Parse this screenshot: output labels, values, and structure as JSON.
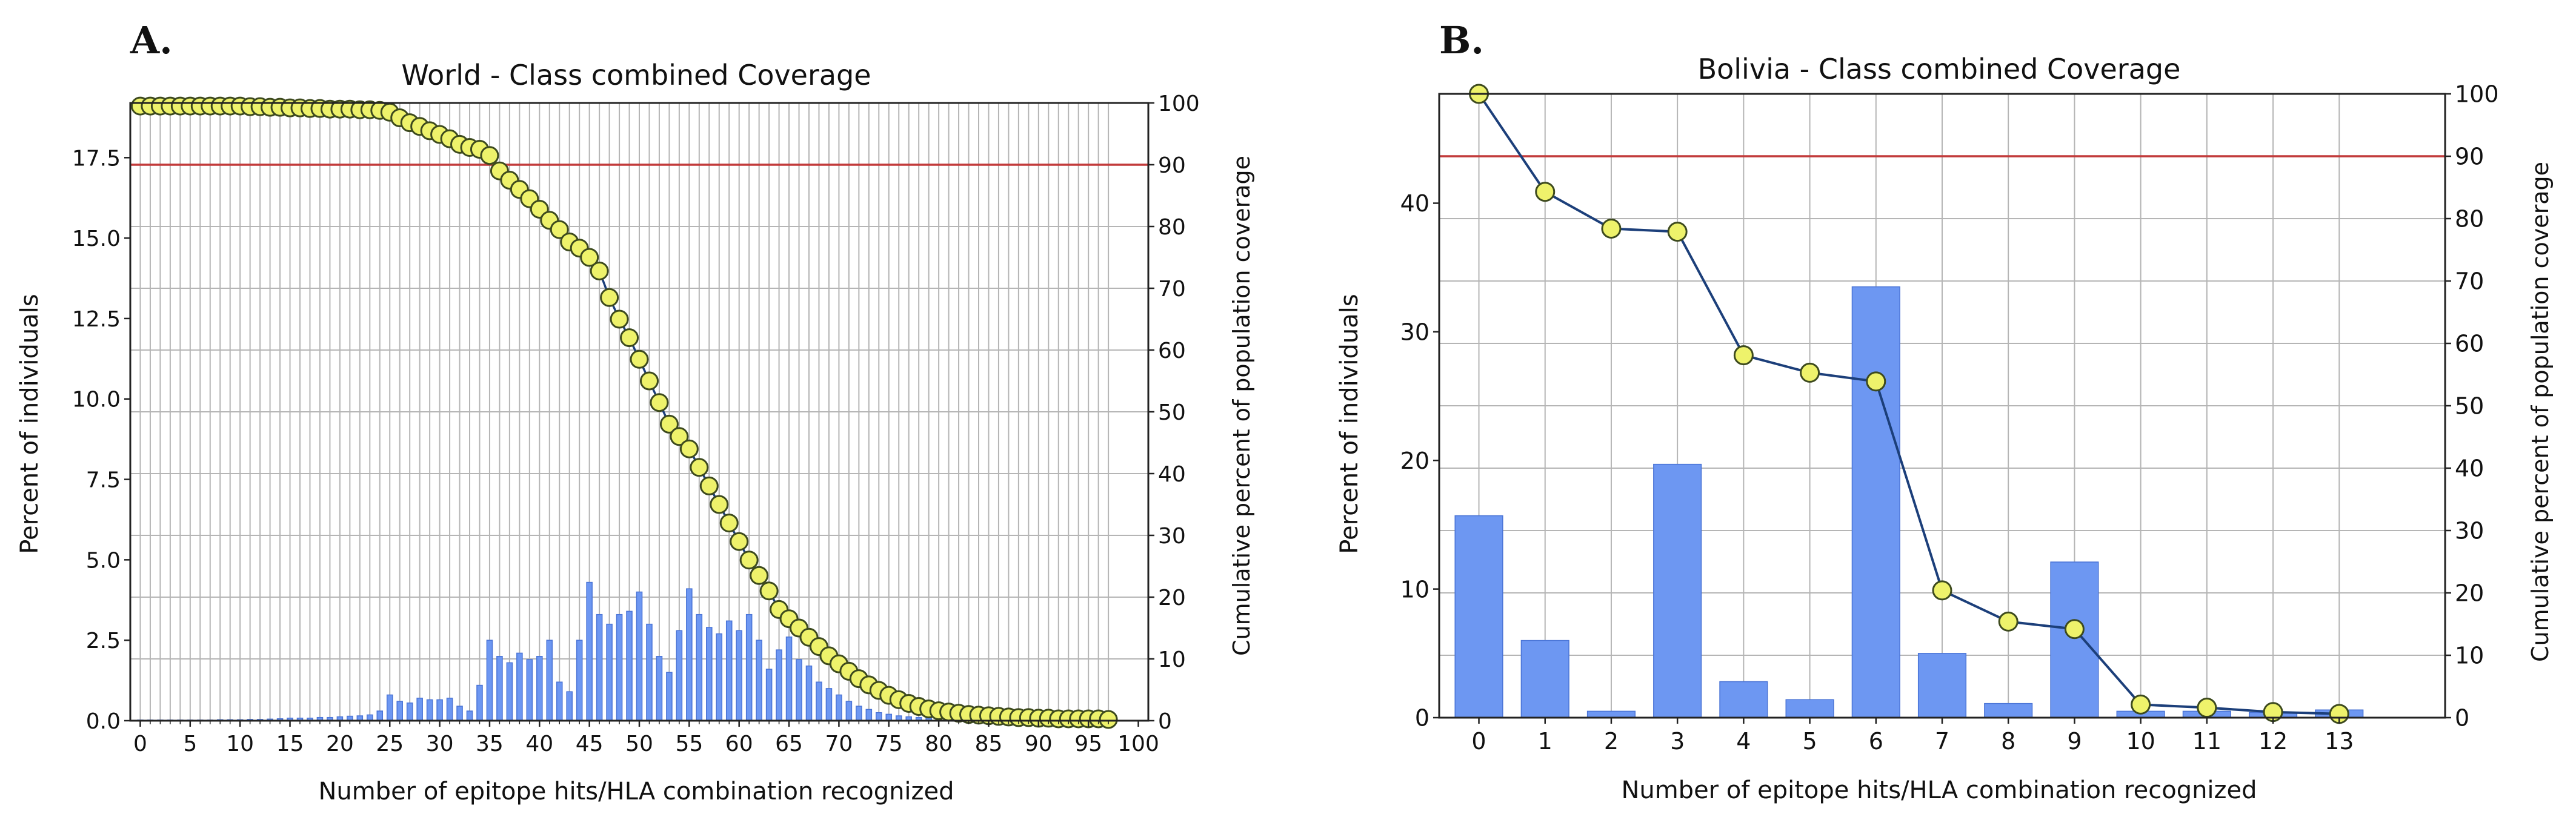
{
  "colors": {
    "bar_fill": "#6d97f2",
    "bar_edge": "#4a74d6",
    "line": "#1c3f7a",
    "marker_fill": "#eef26b",
    "marker_edge": "#3d4a1e",
    "threshold": "#c23b3b",
    "grid": "#b5b5b5",
    "axis": "#222222"
  },
  "chart_data": [
    {
      "type": "bar",
      "panel_label": "A.",
      "title": "World - Class combined Coverage",
      "xlabel": "Number of epitope hits/HLA combination recognized",
      "ylabel": "Percent of individuals",
      "y2label": "Cumulative percent of population coverage",
      "xlim": [
        -1,
        101
      ],
      "ylim": [
        0,
        19.2
      ],
      "y2lim": [
        0,
        100
      ],
      "threshold_y2": 90,
      "grid": true,
      "x_ticks": [
        0,
        5,
        10,
        15,
        20,
        25,
        30,
        35,
        40,
        45,
        50,
        55,
        60,
        65,
        70,
        75,
        80,
        85,
        90,
        95,
        100
      ],
      "x_tick_labels": [
        "0",
        "5",
        "10",
        "15",
        "20",
        "25",
        "30",
        "35",
        "40",
        "45",
        "50",
        "55",
        "60",
        "65",
        "70",
        "75",
        "80",
        "85",
        "90",
        "95",
        "100"
      ],
      "y_ticks": [
        0,
        2.5,
        5,
        7.5,
        10,
        12.5,
        15,
        17.5
      ],
      "y_tick_labels": [
        "0.0",
        "2.5",
        "5.0",
        "7.5",
        "10.0",
        "12.5",
        "15.0",
        "17.5"
      ],
      "y2_ticks": [
        0,
        10,
        20,
        30,
        40,
        50,
        60,
        70,
        80,
        90,
        100
      ],
      "y2_tick_labels": [
        "0",
        "10",
        "20",
        "30",
        "40",
        "50",
        "60",
        "70",
        "80",
        "90",
        "100"
      ],
      "categories": [
        0,
        1,
        2,
        3,
        4,
        5,
        6,
        7,
        8,
        9,
        10,
        11,
        12,
        13,
        14,
        15,
        16,
        17,
        18,
        19,
        20,
        21,
        22,
        23,
        24,
        25,
        26,
        27,
        28,
        29,
        30,
        31,
        32,
        33,
        34,
        35,
        36,
        37,
        38,
        39,
        40,
        41,
        42,
        43,
        44,
        45,
        46,
        47,
        48,
        49,
        50,
        51,
        52,
        53,
        54,
        55,
        56,
        57,
        58,
        59,
        60,
        61,
        62,
        63,
        64,
        65,
        66,
        67,
        68,
        69,
        70,
        71,
        72,
        73,
        74,
        75,
        76,
        77,
        78,
        79,
        80,
        81,
        82,
        83,
        84,
        85,
        86,
        87,
        88,
        89,
        90,
        91,
        92,
        93,
        94,
        95,
        96,
        97
      ],
      "series": [
        {
          "name": "Percent of individuals",
          "axis": "left",
          "values": [
            0.02,
            0.02,
            0.02,
            0.02,
            0.02,
            0.02,
            0.02,
            0.02,
            0.03,
            0.03,
            0.03,
            0.04,
            0.04,
            0.05,
            0.06,
            0.08,
            0.08,
            0.08,
            0.1,
            0.1,
            0.12,
            0.14,
            0.15,
            0.18,
            0.3,
            0.8,
            0.6,
            0.55,
            0.7,
            0.65,
            0.65,
            0.7,
            0.45,
            0.3,
            1.1,
            2.5,
            2.0,
            1.8,
            2.1,
            1.9,
            2.0,
            2.5,
            1.2,
            0.9,
            2.5,
            4.3,
            3.3,
            3.0,
            3.3,
            3.4,
            4.0,
            3.0,
            2.0,
            1.5,
            2.8,
            4.1,
            3.3,
            2.9,
            2.7,
            3.1,
            2.8,
            3.3,
            2.5,
            1.6,
            2.2,
            2.6,
            1.9,
            1.7,
            1.2,
            1.0,
            0.8,
            0.6,
            0.45,
            0.35,
            0.25,
            0.2,
            0.15,
            0.12,
            0.1,
            0.08,
            0.07,
            0.06,
            0.05,
            0.05,
            0.04,
            0.04,
            0.03,
            0.03,
            0.03,
            0.02,
            0.02,
            0.02,
            0.02,
            0.02,
            0.02,
            0.02,
            0.02,
            0.02
          ]
        },
        {
          "name": "Cumulative percent of population coverage",
          "axis": "right",
          "type": "line",
          "values": [
            99.5,
            99.5,
            99.5,
            99.5,
            99.5,
            99.5,
            99.5,
            99.5,
            99.5,
            99.5,
            99.5,
            99.4,
            99.4,
            99.3,
            99.3,
            99.2,
            99.2,
            99.1,
            99.1,
            99.0,
            99.0,
            99.0,
            98.9,
            98.9,
            98.8,
            98.5,
            97.6,
            96.8,
            96.2,
            95.5,
            94.9,
            94.2,
            93.3,
            92.8,
            92.5,
            91.5,
            89.0,
            87.5,
            86.0,
            84.5,
            82.8,
            81.0,
            79.5,
            77.5,
            76.5,
            75.0,
            72.8,
            68.5,
            65.0,
            62.0,
            58.5,
            55.0,
            51.5,
            48.0,
            46.0,
            44.0,
            41.0,
            38.0,
            35.0,
            32.0,
            29.0,
            26.0,
            23.5,
            21.0,
            18.0,
            16.5,
            15.0,
            13.5,
            12.0,
            10.5,
            9.2,
            8.0,
            6.8,
            5.8,
            4.9,
            4.1,
            3.4,
            2.8,
            2.3,
            1.9,
            1.6,
            1.4,
            1.2,
            1.0,
            0.9,
            0.8,
            0.7,
            0.6,
            0.5,
            0.5,
            0.4,
            0.4,
            0.3,
            0.3,
            0.3,
            0.3,
            0.3,
            0.2
          ]
        }
      ]
    },
    {
      "type": "bar",
      "panel_label": "B.",
      "title": "Bolivia - Class combined Coverage",
      "xlabel": "Number of epitope hits/HLA combination recognized",
      "ylabel": "Percent of individuals",
      "y2label": "Cumulative percent of population coverage",
      "xlim": [
        -0.6,
        14.6
      ],
      "ylim": [
        0,
        48.5
      ],
      "y2lim": [
        0,
        100
      ],
      "threshold_y2": 90,
      "grid": true,
      "x_ticks": [
        0,
        1,
        2,
        3,
        4,
        5,
        6,
        7,
        8,
        9,
        10,
        11,
        12,
        13
      ],
      "x_tick_labels": [
        "0",
        "1",
        "2",
        "3",
        "4",
        "5",
        "6",
        "7",
        "8",
        "9",
        "10",
        "11",
        "12",
        "13"
      ],
      "y_ticks": [
        0,
        10,
        20,
        30,
        40
      ],
      "y_tick_labels": [
        "0",
        "10",
        "20",
        "30",
        "40"
      ],
      "y2_ticks": [
        0,
        10,
        20,
        30,
        40,
        50,
        60,
        70,
        80,
        90,
        100
      ],
      "y2_tick_labels": [
        "0",
        "10",
        "20",
        "30",
        "40",
        "50",
        "60",
        "70",
        "80",
        "90",
        "100"
      ],
      "categories": [
        0,
        1,
        2,
        3,
        4,
        5,
        6,
        7,
        8,
        9,
        10,
        11,
        12,
        13
      ],
      "series": [
        {
          "name": "Percent of individuals",
          "axis": "left",
          "values": [
            15.7,
            6.0,
            0.5,
            19.7,
            2.8,
            1.4,
            33.5,
            5.0,
            1.1,
            12.1,
            0.5,
            0.5,
            0.4,
            0.6
          ]
        },
        {
          "name": "Cumulative percent of population coverage",
          "axis": "right",
          "type": "line",
          "values": [
            100,
            84.3,
            78.4,
            77.9,
            58.1,
            55.3,
            53.9,
            20.4,
            15.4,
            14.2,
            2.1,
            1.6,
            0.9,
            0.6
          ]
        }
      ]
    }
  ]
}
